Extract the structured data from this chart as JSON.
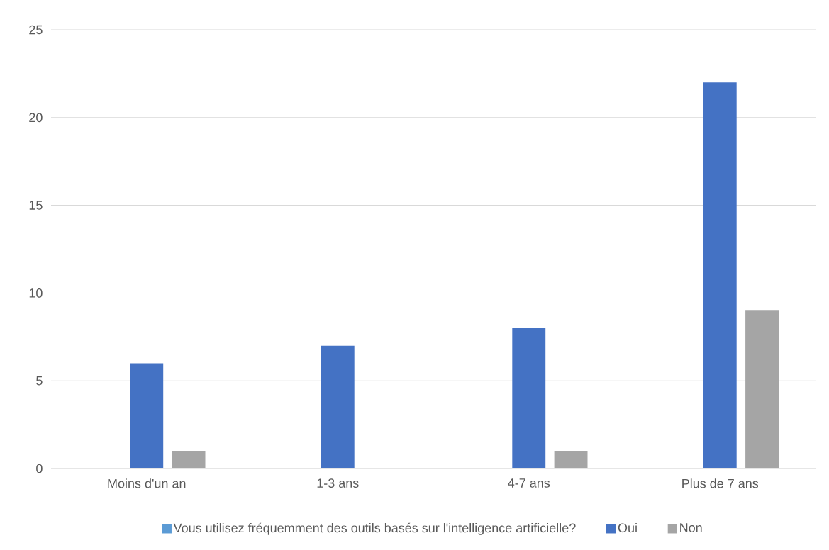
{
  "chart_data": {
    "type": "bar",
    "categories": [
      "Moins d'un an",
      "1-3 ans",
      "4-7 ans",
      "Plus de 7 ans"
    ],
    "series": [
      {
        "name": "Vous utilisez fréquemment des outils basés sur l'intelligence artificielle?",
        "color": "#5b9bd5",
        "values": [
          null,
          null,
          null,
          null
        ]
      },
      {
        "name": "Oui",
        "color": "#4472c4",
        "values": [
          6,
          7,
          8,
          22
        ]
      },
      {
        "name": "Non",
        "color": "#a5a5a5",
        "values": [
          1,
          null,
          1,
          9
        ]
      }
    ],
    "ylim": [
      0,
      25
    ],
    "yticks": [
      0,
      5,
      10,
      15,
      20,
      25
    ],
    "grid": "y",
    "legend": "bottom"
  }
}
